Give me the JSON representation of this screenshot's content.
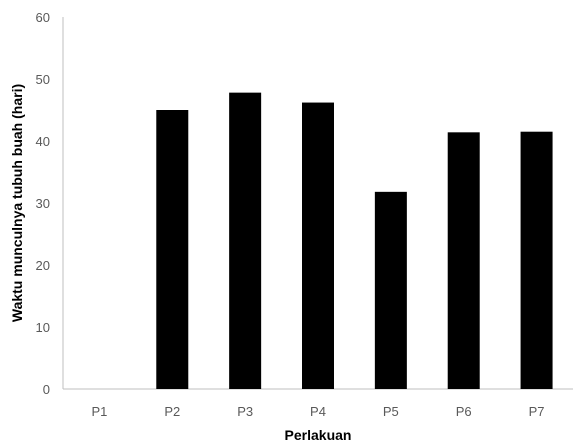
{
  "chart_data": {
    "type": "bar",
    "categories": [
      "P1",
      "P2",
      "P3",
      "P4",
      "P5",
      "P6",
      "P7"
    ],
    "values": [
      0,
      45,
      47.8,
      46.2,
      31.8,
      41.4,
      41.5
    ],
    "title": "",
    "xlabel": "Perlakuan",
    "ylabel": "Waktu munculnya tubuh buah (hari)",
    "ylim": [
      0,
      60
    ],
    "yticks": [
      0,
      10,
      20,
      30,
      40,
      50,
      60
    ],
    "grid": false,
    "legend": "none",
    "bar_color": "#000000",
    "axis_color": "#bfbfbf"
  }
}
